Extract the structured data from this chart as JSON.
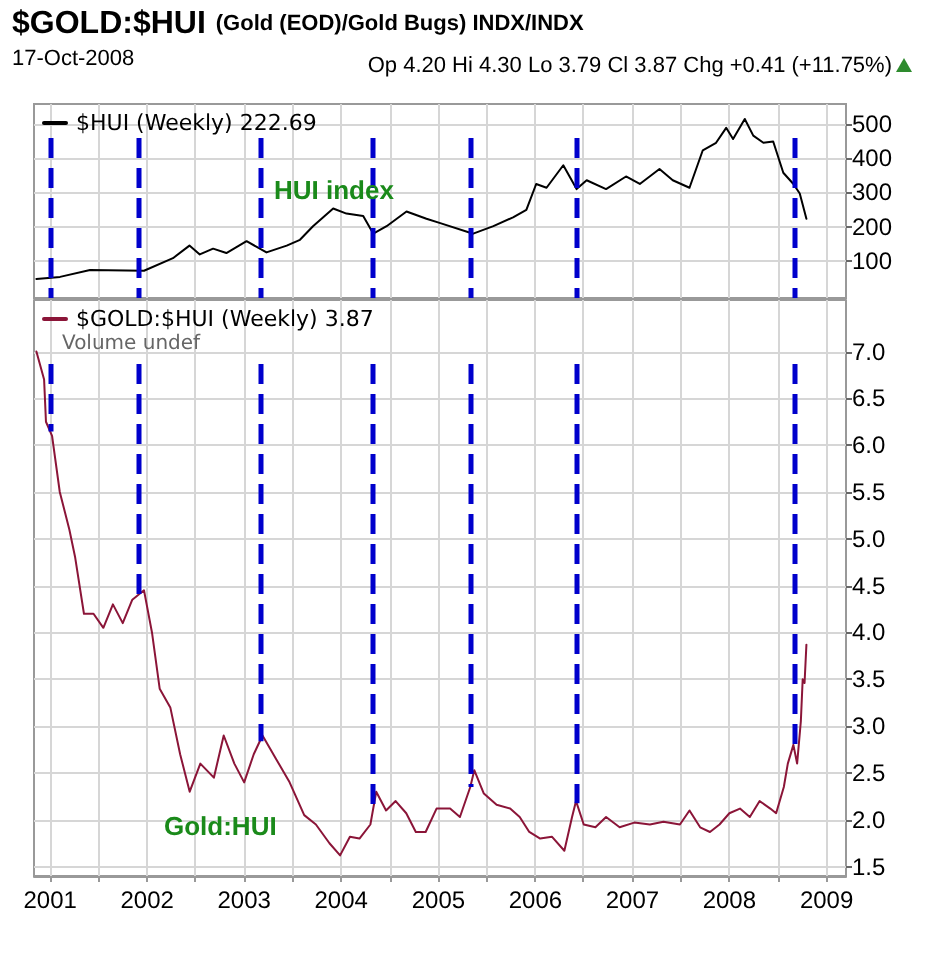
{
  "chart_data": [
    {
      "type": "line",
      "title": "$GOLD:$HUI (Gold (EOD)/Gold Bugs) INDX/INDX",
      "subtitle": "17-Oct-2008",
      "annotations": [
        "Op 4.20 Hi 4.30 Lo 3.79 Cl 3.87 Chg +0.41 (+11.75%)",
        "HUI index"
      ],
      "x": [
        "2000-11-10",
        "2001-02-07",
        "2001-05-31",
        "2001-12-20",
        "2002-04-08",
        "2002-06-09",
        "2002-07-18",
        "2002-09-06",
        "2002-10-26",
        "2003-01-10",
        "2003-03-26",
        "2003-06-10",
        "2003-07-30",
        "2003-09-17",
        "2003-12-02",
        "2004-01-21",
        "2004-03-24",
        "2004-05-01",
        "2004-06-20",
        "2004-09-03",
        "2004-11-17",
        "2005-01-08",
        "2005-05-12",
        "2005-07-27",
        "2005-10-09",
        "2005-11-28",
        "2006-01-04",
        "2006-02-12",
        "2006-04-16",
        "2006-06-05",
        "2006-07-13",
        "2006-09-24",
        "2006-12-08",
        "2007-01-29",
        "2007-04-13",
        "2007-06-02",
        "2007-08-04",
        "2007-09-23",
        "2007-11-12",
        "2007-12-20",
        "2008-01-15",
        "2008-02-28",
        "2008-03-31",
        "2008-05-08",
        "2008-06-14",
        "2008-07-22",
        "2008-08-29",
        "2008-09-22",
        "2008-10-17"
      ],
      "series": [
        {
          "name": "$HUI (Weekly) 222.69",
          "color": "#000000",
          "values": [
            46,
            52,
            72,
            70,
            107,
            144,
            118,
            135,
            122,
            157,
            124,
            144,
            161,
            201,
            253,
            238,
            231,
            179,
            201,
            244,
            223,
            210,
            179,
            201,
            227,
            249,
            325,
            314,
            380,
            310,
            336,
            310,
            347,
            325,
            369,
            336,
            314,
            424,
            446,
            490,
            457,
            516,
            467,
            446,
            450,
            358,
            325,
            297,
            222.69
          ]
        }
      ],
      "xlim": [
        "2000-11-01",
        "2009-03-15"
      ],
      "xticks": [
        "2001",
        {
          "value": "2001-07",
          "label": null
        },
        "2002",
        {
          "value": "2002-07",
          "label": null
        },
        "2003",
        {
          "value": "2003-07",
          "label": null
        },
        "2004",
        {
          "value": "2004-07",
          "label": null
        },
        "2005",
        {
          "value": "2005-07",
          "label": null
        },
        "2006",
        {
          "value": "2006-07",
          "label": null
        },
        "2007",
        {
          "value": "2007-07",
          "label": null
        },
        "2008",
        {
          "value": "2008-07",
          "label": null
        },
        "2009"
      ],
      "ylim": [
        -10,
        560
      ],
      "yticks": [
        100,
        200,
        300,
        400,
        500
      ],
      "tick_labels": "y",
      "grid": true,
      "legend": "top left",
      "marker": "none",
      "line_style": "solid",
      "ref_lines": [
        {
          "axis": "x",
          "value": "2001-01",
          "color": "#0000cc",
          "line_style": "dashed"
        },
        {
          "axis": "x",
          "value": "2001-12",
          "color": "#0000cc",
          "line_style": "dashed"
        },
        {
          "axis": "x",
          "value": "2003-03",
          "color": "#0000cc",
          "line_style": "dashed"
        },
        {
          "axis": "x",
          "value": "2004-05",
          "color": "#0000cc",
          "line_style": "dashed"
        },
        {
          "axis": "x",
          "value": "2005-05",
          "color": "#0000cc",
          "line_style": "dashed"
        },
        {
          "axis": "x",
          "value": "2006-06",
          "color": "#0000cc",
          "line_style": "dashed"
        },
        {
          "axis": "x",
          "value": "2008-09",
          "color": "#0000cc",
          "line_style": "dashed"
        }
      ]
    },
    {
      "type": "line",
      "annotations": [
        "Volume undef",
        "Gold:HUI"
      ],
      "x": [
        "2000-11-10",
        "2000-12-09",
        "2000-12-16",
        "2001-01-08",
        "2001-02-06",
        "2001-03-14",
        "2001-04-05",
        "2001-05-08",
        "2001-06-13",
        "2001-07-20",
        "2001-08-25",
        "2001-10-01",
        "2001-11-06",
        "2001-12-20",
        "2002-01-19",
        "2002-02-17",
        "2002-03-29",
        "2002-05-05",
        "2002-06-10",
        "2002-07-20",
        "2002-09-09",
        "2002-10-16",
        "2002-11-25",
        "2003-01-01",
        "2003-02-06",
        "2003-03-11",
        "2003-05-01",
        "2003-06-21",
        "2003-08-15",
        "2003-09-28",
        "2003-11-18",
        "2003-12-28",
        "2004-02-03",
        "2004-03-10",
        "2004-04-20",
        "2004-05-12",
        "2004-06-18",
        "2004-07-24",
        "2004-09-02",
        "2004-10-08",
        "2004-11-14",
        "2004-12-25",
        "2005-02-14",
        "2005-03-23",
        "2005-05-01",
        "2005-05-16",
        "2005-06-21",
        "2005-08-08",
        "2005-09-28",
        "2005-11-03",
        "2005-12-09",
        "2006-01-19",
        "2006-03-04",
        "2006-04-20",
        "2006-05-19",
        "2006-06-03",
        "2006-07-02",
        "2006-08-15",
        "2006-09-24",
        "2006-11-14",
        "2007-01-08",
        "2007-03-08",
        "2007-04-28",
        "2007-06-29",
        "2007-08-04",
        "2007-09-13",
        "2007-10-20",
        "2007-11-25",
        "2008-01-01",
        "2008-02-10",
        "2008-03-18",
        "2008-04-24",
        "2008-06-03",
        "2008-06-25",
        "2008-07-24",
        "2008-08-08",
        "2008-08-29",
        "2008-09-12",
        "2008-09-26",
        "2008-10-03",
        "2008-10-10",
        "2008-10-17"
      ],
      "series": [
        {
          "name": "$GOLD:$HUI (Weekly) 3.87",
          "color": "#8b1538",
          "values": [
            7.0,
            6.7,
            6.25,
            6.1,
            5.5,
            5.1,
            4.8,
            4.2,
            4.2,
            4.05,
            4.3,
            4.1,
            4.35,
            4.45,
            4.0,
            3.4,
            3.2,
            2.7,
            2.3,
            2.6,
            2.45,
            2.9,
            2.6,
            2.4,
            2.7,
            2.9,
            2.65,
            2.4,
            2.05,
            1.95,
            1.75,
            1.62,
            1.82,
            1.8,
            1.95,
            2.3,
            2.1,
            2.2,
            2.07,
            1.87,
            1.87,
            2.12,
            2.12,
            2.03,
            2.35,
            2.53,
            2.28,
            2.16,
            2.12,
            2.03,
            1.87,
            1.8,
            1.82,
            1.67,
            2.03,
            2.2,
            1.95,
            1.92,
            2.03,
            1.92,
            1.97,
            1.95,
            1.98,
            1.95,
            2.1,
            1.92,
            1.87,
            1.95,
            2.07,
            2.12,
            2.03,
            2.2,
            2.12,
            2.07,
            2.35,
            2.6,
            2.8,
            2.6,
            3.05,
            3.5,
            3.46,
            3.87
          ]
        }
      ],
      "xlim": [
        "2000-11-01",
        "2009-03-15"
      ],
      "xticks": [
        "2001",
        {
          "value": "2001-07",
          "label": null
        },
        "2002",
        {
          "value": "2002-07",
          "label": null
        },
        "2003",
        {
          "value": "2003-07",
          "label": null
        },
        "2004",
        {
          "value": "2004-07",
          "label": null
        },
        "2005",
        {
          "value": "2005-07",
          "label": null
        },
        "2006",
        {
          "value": "2006-07",
          "label": null
        },
        "2007",
        {
          "value": "2007-07",
          "label": null
        },
        "2008",
        {
          "value": "2008-07",
          "label": null
        },
        "2009"
      ],
      "ylim": [
        1.4,
        7.55
      ],
      "yticks": [
        1.5,
        {
          "value": 2,
          "label": "2.0"
        },
        2.5,
        {
          "value": 3,
          "label": "3.0"
        },
        3.5,
        {
          "value": 4,
          "label": "4.0"
        },
        4.5,
        {
          "value": 5,
          "label": "5.0"
        },
        5.5,
        {
          "value": 6,
          "label": "6.0"
        },
        6.5,
        {
          "value": 7,
          "label": "7.0"
        }
      ],
      "grid": true,
      "legend": "top left",
      "marker": "none",
      "line_style": "solid",
      "ref_lines": [
        {
          "axis": "x",
          "value": "2001-01",
          "color": "#0000cc",
          "line_style": "dashed"
        },
        {
          "axis": "x",
          "value": "2001-12",
          "color": "#0000cc",
          "line_style": "dashed"
        },
        {
          "axis": "x",
          "value": "2003-03",
          "color": "#0000cc",
          "line_style": "dashed"
        },
        {
          "axis": "x",
          "value": "2004-05",
          "color": "#0000cc",
          "line_style": "dashed"
        },
        {
          "axis": "x",
          "value": "2005-05",
          "color": "#0000cc",
          "line_style": "dashed"
        },
        {
          "axis": "x",
          "value": "2006-06",
          "color": "#0000cc",
          "line_style": "dashed"
        },
        {
          "axis": "x",
          "value": "2008-09",
          "color": "#0000cc",
          "line_style": "dashed"
        }
      ]
    }
  ]
}
